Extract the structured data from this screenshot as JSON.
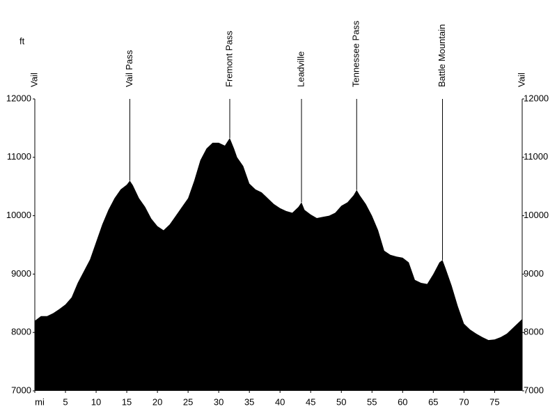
{
  "chart_data": {
    "type": "area",
    "y_unit": "ft",
    "x": [
      0,
      1,
      2,
      3,
      4,
      5,
      6,
      7,
      8,
      9,
      10,
      11,
      12,
      13,
      14,
      15,
      15.5,
      16,
      17,
      18,
      19,
      20,
      21,
      22,
      23,
      24,
      25,
      26,
      27,
      28,
      29,
      30,
      31,
      31.8,
      32.5,
      33,
      34,
      35,
      36,
      37,
      38,
      39,
      40,
      41,
      42,
      43,
      43.5,
      44,
      45,
      46,
      47,
      48,
      49,
      50,
      51,
      52,
      52.5,
      53,
      54,
      55,
      56,
      57,
      58,
      59,
      60,
      61,
      62,
      63,
      64,
      65,
      66,
      66.5,
      67,
      68,
      69,
      70,
      71,
      72,
      73,
      74,
      75,
      76,
      77,
      78,
      79,
      79.5
    ],
    "values": [
      8200,
      8280,
      8280,
      8330,
      8400,
      8480,
      8600,
      8850,
      9050,
      9250,
      9550,
      9850,
      10100,
      10300,
      10450,
      10530,
      10600,
      10520,
      10300,
      10150,
      9950,
      9820,
      9750,
      9850,
      10000,
      10150,
      10300,
      10600,
      10950,
      11150,
      11250,
      11250,
      11200,
      11330,
      11150,
      11000,
      10850,
      10550,
      10450,
      10400,
      10300,
      10200,
      10130,
      10080,
      10050,
      10150,
      10230,
      10100,
      10020,
      9960,
      9980,
      10000,
      10050,
      10170,
      10230,
      10350,
      10440,
      10350,
      10200,
      10000,
      9750,
      9400,
      9330,
      9300,
      9280,
      9200,
      8900,
      8850,
      8830,
      9000,
      9200,
      9240,
      9100,
      8800,
      8450,
      8150,
      8050,
      7980,
      7920,
      7870,
      7880,
      7920,
      7980,
      8080,
      8180,
      8230
    ],
    "color": "#000000",
    "markers": [
      {
        "label": "Vail",
        "x": 0
      },
      {
        "label": "Vail Pass",
        "x": 15.5
      },
      {
        "label": "Fremont Pass",
        "x": 31.8
      },
      {
        "label": "Leadville",
        "x": 43.5
      },
      {
        "label": "Tennessee Pass",
        "x": 52.5
      },
      {
        "label": "Battle Mountain",
        "x": 66.5
      },
      {
        "label": "Vail",
        "x": 79.5
      }
    ],
    "xlim": [
      0,
      79.5
    ],
    "xticks": [
      {
        "value": 0,
        "label": "mi"
      },
      5,
      10,
      15,
      20,
      25,
      30,
      35,
      40,
      45,
      50,
      55,
      60,
      65,
      70,
      75
    ],
    "ylim": [
      7000,
      12000
    ],
    "yticks": [
      7000,
      8000,
      9000,
      10000,
      11000,
      12000
    ]
  }
}
